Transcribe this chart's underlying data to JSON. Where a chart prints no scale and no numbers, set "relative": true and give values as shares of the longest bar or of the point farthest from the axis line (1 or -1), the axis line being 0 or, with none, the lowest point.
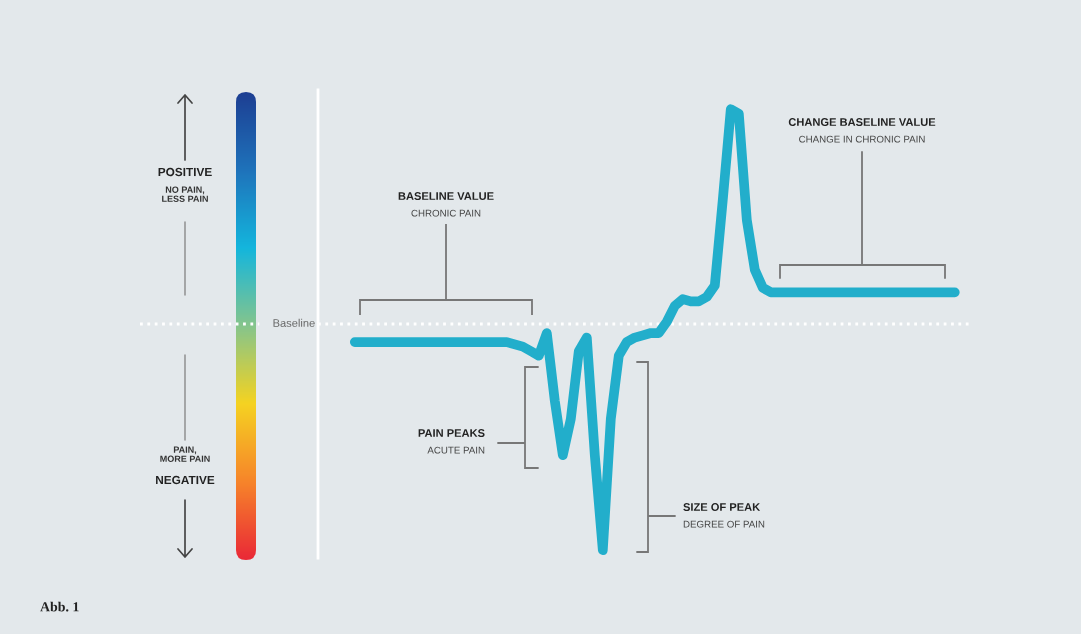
{
  "chart_data": {
    "type": "line",
    "relative": true,
    "line_style": "solid",
    "marker": "none",
    "categories": [
      null,
      null,
      null,
      null,
      null,
      null,
      null,
      null,
      null,
      null,
      null,
      null,
      null,
      null,
      null,
      null,
      null,
      null,
      null,
      null,
      null,
      null,
      null,
      null,
      null,
      null,
      null,
      null,
      null,
      null,
      null,
      null,
      null,
      null,
      null,
      null,
      null,
      null,
      null,
      null,
      null,
      null,
      null,
      null,
      null,
      null,
      null,
      null,
      null,
      null,
      null,
      null,
      null,
      null,
      null,
      null,
      null,
      null,
      null,
      null,
      null,
      null,
      null,
      null,
      null,
      null,
      null,
      null,
      null,
      null,
      null,
      null,
      null,
      null,
      null,
      null
    ],
    "series": [
      {
        "color": "#22aecb",
        "values": [
          -0.08,
          -0.08,
          -0.08,
          -0.08,
          -0.08,
          -0.08,
          -0.08,
          -0.08,
          -0.08,
          -0.08,
          -0.08,
          -0.08,
          -0.08,
          -0.08,
          -0.08,
          -0.08,
          -0.08,
          -0.08,
          -0.08,
          -0.08,
          -0.09,
          -0.1,
          -0.12,
          -0.14,
          -0.04,
          -0.34,
          -0.58,
          -0.42,
          -0.12,
          -0.06,
          -0.58,
          -1,
          -0.42,
          -0.14,
          -0.08,
          -0.06,
          -0.05,
          -0.04,
          -0.04,
          0.01,
          0.08,
          0.11,
          0.1,
          0.1,
          0.12,
          0.17,
          0.55,
          0.95,
          0.93,
          0.46,
          0.24,
          0.16,
          0.14,
          0.14,
          0.14,
          0.14,
          0.14,
          0.14,
          0.14,
          0.14,
          0.14,
          0.14,
          0.14,
          0.14,
          0.14,
          0.14,
          0.14,
          0.14,
          0.14,
          0.14,
          0.14,
          0.14,
          0.14,
          0.14,
          0.14,
          0.14
        ]
      }
    ],
    "ref_lines": [
      {
        "axis": "y",
        "value": 0,
        "label": "Baseline",
        "color": "#ffffff",
        "line_style": "dotted"
      }
    ],
    "annotations": [
      "POSITIVE",
      "NO PAIN,\nLESS PAIN",
      "PAIN,\nMORE PAIN",
      "NEGATIVE",
      "BASELINE VALUE",
      "CHRONIC PAIN",
      "PAIN PEAKS",
      "ACUTE PAIN",
      "SIZE OF PEAK",
      "DEGREE OF PAIN",
      "CHANGE BASELINE VALUE",
      "CHANGE IN CHRONIC PAIN",
      "Abb. 1"
    ]
  }
}
